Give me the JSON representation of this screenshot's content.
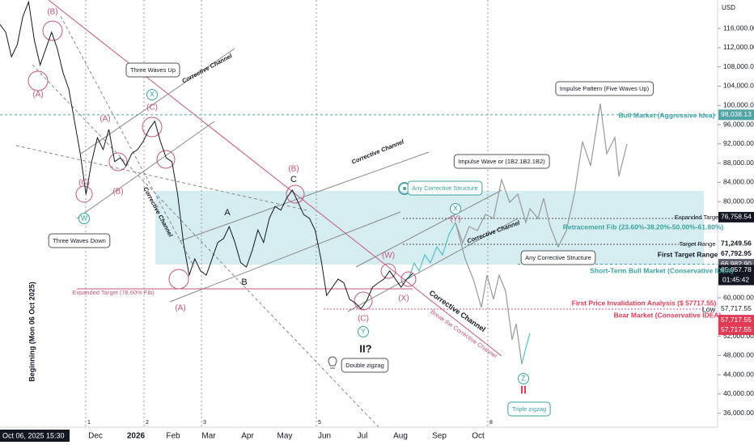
{
  "chart_data": {
    "type": "line",
    "currency": "USD",
    "series": [
      {
        "name": "Price",
        "color": "#131722",
        "values": [
          116800,
          115200,
          110100,
          112600,
          118500,
          121500,
          113500,
          108400,
          111800,
          115200,
          111800,
          106800,
          103400,
          96700,
          90000,
          81500,
          88300,
          93300,
          90800,
          95000,
          88300,
          89100,
          87400,
          90000,
          90800,
          92500,
          95000,
          96700,
          92500,
          89100,
          88300,
          81500,
          71500,
          64700,
          68100,
          65600,
          64700,
          68100,
          71500,
          72300,
          74800,
          71500,
          67300,
          66400,
          69800,
          74100,
          71500,
          76500,
          79000,
          78200,
          80700,
          82400,
          79900,
          77300,
          76500,
          74000,
          68100,
          60500,
          62200,
          63900,
          63100,
          59700,
          58900,
          57720,
          59400,
          62200,
          63100,
          63900,
          65600,
          63900,
          62200,
          63900,
          65058
        ]
      }
    ],
    "ylim": [
      33100,
      121900
    ],
    "yticks": [
      {
        "value": 116000,
        "label": "116,000.00"
      },
      {
        "value": 112000,
        "label": "112,000.00"
      },
      {
        "value": 108000,
        "label": "108,000.00"
      },
      {
        "value": 104000,
        "label": "104,000.00"
      },
      {
        "value": 100000,
        "label": "100,000.00"
      },
      {
        "value": 96000,
        "label": "96,000.00"
      },
      {
        "value": 92000,
        "label": "92,000.00"
      },
      {
        "value": 88000,
        "label": "88,000.00"
      },
      {
        "value": 84000,
        "label": "84,000.00"
      },
      {
        "value": 80000,
        "label": "80,000.00"
      },
      {
        "value": 60000,
        "label": "60,000.00"
      },
      {
        "value": 52000,
        "label": "52,000.00"
      },
      {
        "value": 48000,
        "label": "48,000.00"
      },
      {
        "value": 44000,
        "label": "44,000.00"
      },
      {
        "value": 40000,
        "label": "40,000.00"
      },
      {
        "value": 36000,
        "label": "36,000.00"
      }
    ],
    "xtick_labels": [
      "Dec",
      "2026",
      "Feb",
      "Mar",
      "Apr",
      "May",
      "Jun",
      "Jul",
      "Aug",
      "Sep",
      "Oct"
    ],
    "crosshair_label": "Oct 06, 2025  15:30",
    "countdown": "01:45:42",
    "markers": [
      {
        "value": 98038.13,
        "label": "98,038.13",
        "color": "#4fa3a5"
      },
      {
        "value": 76758.54,
        "label": "76,758.54",
        "color": "#131722"
      },
      {
        "value": 71249.56,
        "label": "71,249.56",
        "color": "#ffffff"
      },
      {
        "value": 67792.95,
        "label": "67,792.95",
        "color": "#ffffff"
      },
      {
        "value": 66982.9,
        "label": "66,982.90",
        "color": "#5d606b"
      },
      {
        "value": 65057.78,
        "label": "65,057.78",
        "color": "#131722"
      },
      {
        "value": 57717.55,
        "label": "57,717.55",
        "color": "#ffffff"
      },
      {
        "value": 57717.55,
        "label": "57,717.55",
        "color": "#e03a55"
      },
      {
        "value": 57717.55,
        "label": "57,717.55",
        "color": "#e03a55"
      }
    ],
    "cycle_markers": [
      "1",
      "2",
      "3",
      "5",
      "8"
    ],
    "annotations": [
      "(B)",
      "(A)",
      "(C)",
      "W",
      "Three Waves Down",
      "Three Waves Up",
      "Corrective Channel",
      "X",
      "(C)",
      "(A)",
      "(B)",
      "Corrective Channel",
      "A",
      "B",
      "(A)",
      "C",
      "(B)",
      "Corrective Channel",
      "Expanded Target (78.60% Fib)",
      "(W)",
      "(X)",
      "(C)",
      "Y",
      "II?",
      "Double zigzag",
      "Corrective Channel",
      "Break the Corrective Channel",
      "Any Corrective Structure",
      "Impulse Wave or (1B2.1B2.1B2)",
      "X",
      "(Y)",
      "Corrective Channel",
      "Any Corrective Structure",
      "Impulse Pattern (Five Waves Up)",
      "Bull Market (Aggressive Idea)",
      "Retracement Fib (23.60%-38.20%-50.00%-61.80%)",
      "Expanded Target",
      "Target Range",
      "First Target Range",
      "Short-Term Bull Market (Conservative IDEA)",
      "First Price Invalidation Analysis ($ 57717.55)",
      "Low",
      "Bear Market (Conservative IDEA)",
      "Z",
      "II",
      "Triple zigzag",
      "Beginning (Mon 06 Oct 2025)"
    ]
  }
}
